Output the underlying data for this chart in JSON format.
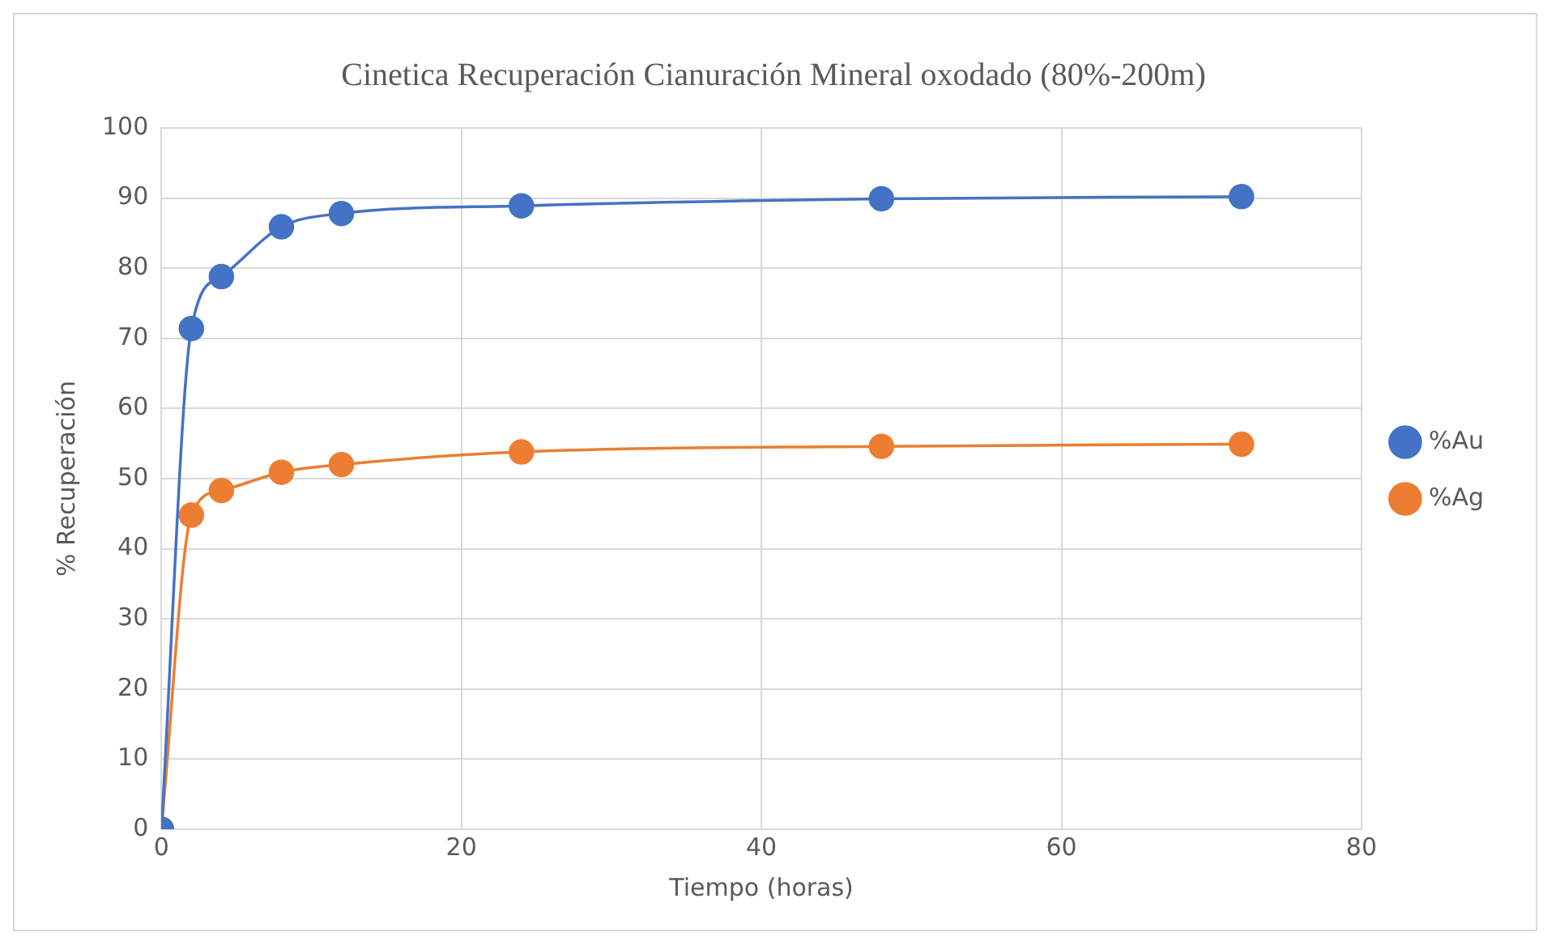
{
  "chart_data": {
    "type": "line",
    "title": "Cinetica Recuperación Cianuración Mineral oxodado (80%-200m)",
    "xlabel": "Tiempo (horas)",
    "ylabel": "% Recuperación",
    "x": [
      0,
      2,
      4,
      8,
      12,
      24,
      48,
      72
    ],
    "series": [
      {
        "name": "%Au",
        "color": "#4472c4",
        "values": [
          0,
          71.4,
          78.8,
          85.9,
          87.8,
          88.9,
          89.9,
          90.2
        ]
      },
      {
        "name": "%Ag",
        "color": "#ed7d31",
        "values": [
          0,
          44.8,
          48.3,
          50.9,
          52.0,
          53.8,
          54.6,
          54.9
        ]
      }
    ],
    "xlim": [
      0,
      80
    ],
    "xticks": [
      0,
      20,
      40,
      60,
      80
    ],
    "ylim": [
      0,
      100
    ],
    "yticks": [
      0,
      10,
      20,
      30,
      40,
      50,
      60,
      70,
      80,
      90,
      100
    ],
    "grid": true,
    "legend": "right",
    "marker": "circle",
    "line_style": "solid"
  }
}
